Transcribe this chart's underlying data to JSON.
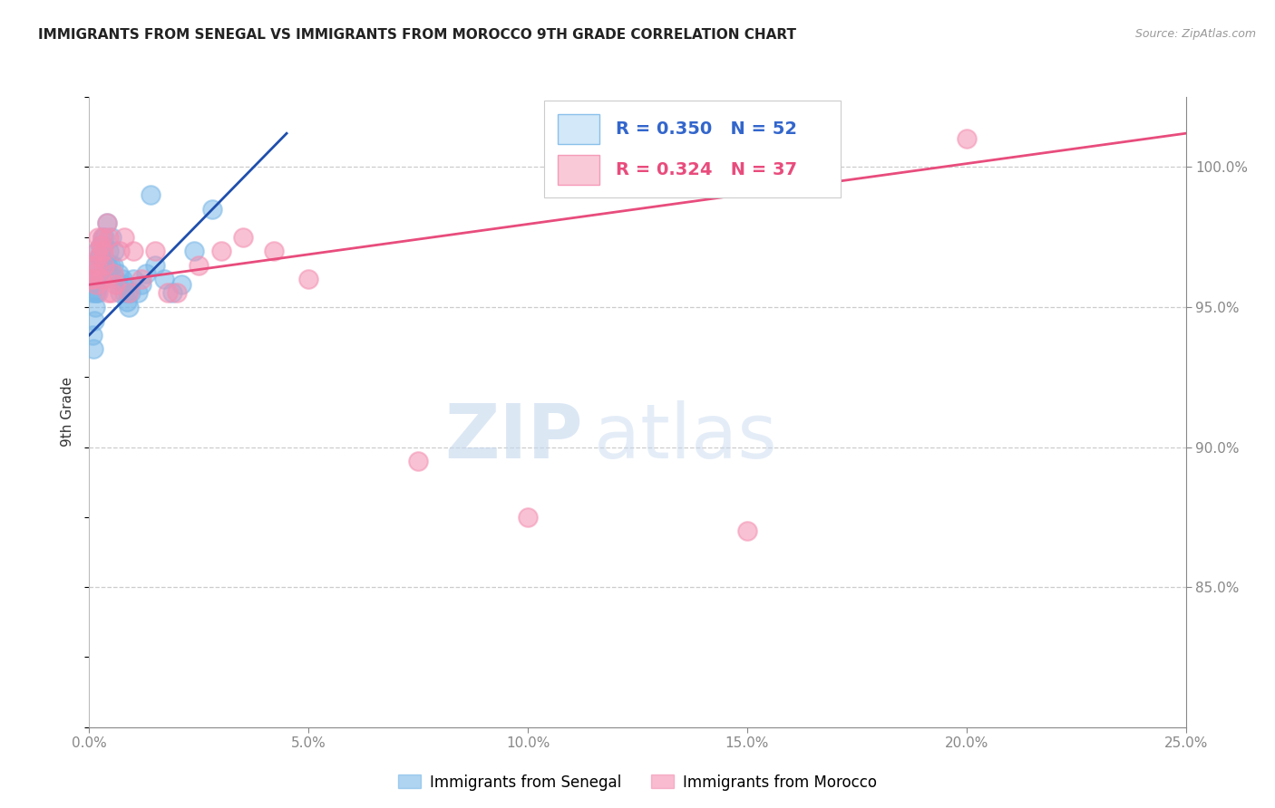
{
  "title": "IMMIGRANTS FROM SENEGAL VS IMMIGRANTS FROM MOROCCO 9TH GRADE CORRELATION CHART",
  "source": "Source: ZipAtlas.com",
  "ylabel": "9th Grade",
  "x_min": 0.0,
  "x_max": 25.0,
  "y_min": 80.0,
  "y_max": 102.5,
  "blue_R": 0.35,
  "blue_N": 52,
  "pink_R": 0.324,
  "pink_N": 37,
  "blue_color": "#7ab8e8",
  "pink_color": "#f48fb1",
  "blue_line_color": "#1f4fad",
  "pink_line_color": "#e84c7d",
  "senegal_legend": "Immigrants from Senegal",
  "morocco_legend": "Immigrants from Morocco",
  "watermark_zip": "ZIP",
  "watermark_atlas": "atlas",
  "blue_x": [
    0.05,
    0.08,
    0.1,
    0.12,
    0.13,
    0.15,
    0.16,
    0.17,
    0.18,
    0.19,
    0.2,
    0.21,
    0.22,
    0.23,
    0.25,
    0.28,
    0.3,
    0.32,
    0.35,
    0.38,
    0.4,
    0.42,
    0.45,
    0.5,
    0.55,
    0.6,
    0.65,
    0.7,
    0.75,
    0.8,
    0.85,
    0.9,
    0.95,
    1.0,
    1.1,
    1.2,
    1.3,
    1.4,
    1.5,
    1.7,
    1.9,
    2.1,
    2.4,
    2.8,
    0.14,
    0.24,
    0.33,
    0.48,
    0.58,
    0.68,
    0.78,
    0.88
  ],
  "blue_y": [
    95.5,
    94.0,
    93.5,
    94.5,
    95.0,
    95.5,
    96.0,
    96.5,
    97.0,
    95.5,
    96.5,
    95.8,
    96.2,
    96.8,
    97.2,
    96.0,
    97.5,
    96.8,
    97.5,
    96.5,
    98.0,
    96.5,
    97.0,
    97.5,
    96.5,
    96.0,
    95.8,
    95.5,
    96.0,
    95.5,
    95.2,
    95.0,
    95.5,
    96.0,
    95.5,
    95.8,
    96.2,
    99.0,
    96.5,
    96.0,
    95.5,
    95.8,
    97.0,
    98.5,
    95.5,
    96.8,
    97.2,
    96.5,
    97.0,
    96.2,
    95.8,
    95.5
  ],
  "pink_x": [
    0.05,
    0.1,
    0.12,
    0.15,
    0.17,
    0.18,
    0.2,
    0.22,
    0.25,
    0.28,
    0.3,
    0.33,
    0.35,
    0.4,
    0.45,
    0.5,
    0.55,
    0.6,
    0.7,
    0.8,
    0.9,
    1.0,
    1.2,
    1.5,
    1.8,
    2.0,
    2.5,
    3.0,
    3.5,
    4.2,
    5.0,
    7.5,
    10.0,
    15.0,
    20.0,
    0.08,
    0.42
  ],
  "pink_y": [
    96.0,
    96.5,
    96.2,
    95.8,
    96.5,
    97.0,
    97.5,
    96.8,
    97.2,
    96.0,
    97.5,
    97.0,
    96.5,
    98.0,
    97.5,
    95.5,
    96.2,
    95.8,
    97.0,
    97.5,
    95.5,
    97.0,
    96.0,
    97.0,
    95.5,
    95.5,
    96.5,
    97.0,
    97.5,
    97.0,
    96.0,
    89.5,
    87.5,
    87.0,
    101.0,
    96.0,
    95.5
  ],
  "blue_line_x0": 0.0,
  "blue_line_y0": 94.0,
  "blue_line_x1": 4.5,
  "blue_line_y1": 101.2,
  "pink_line_x0": 0.0,
  "pink_line_x1": 25.0,
  "pink_line_y0": 95.8,
  "pink_line_y1": 101.2
}
